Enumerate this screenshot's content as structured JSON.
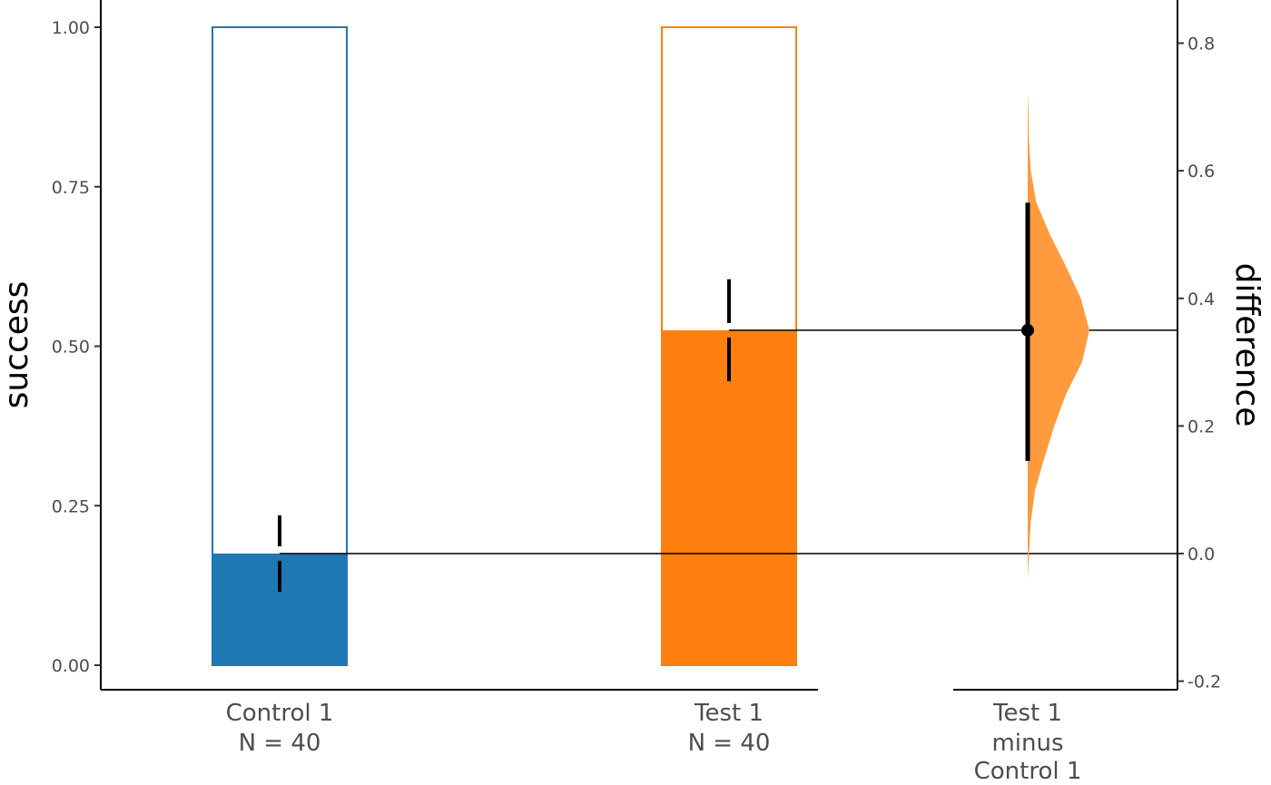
{
  "chart_data": {
    "type": "bar",
    "title": "",
    "colors": {
      "control": "#1f77b4",
      "test": "#ff7f0e",
      "test_fill_light": "#ff9a3d"
    },
    "left_axis": {
      "label": "success",
      "ylim": [
        0,
        1
      ],
      "ticks": [
        "0.00",
        "0.25",
        "0.50",
        "0.75",
        "1.00"
      ]
    },
    "right_axis": {
      "label": "difference",
      "ticks": [
        "-0.2",
        "0.0",
        "0.2",
        "0.4",
        "0.6",
        "0.8"
      ]
    },
    "categories": [
      {
        "line1": "Control 1",
        "line2": "N = 40",
        "value": 0.175,
        "ci": [
          0.115,
          0.235
        ]
      },
      {
        "line1": "Test 1",
        "line2": "N = 40",
        "value": 0.525,
        "ci": [
          0.445,
          0.605
        ]
      }
    ],
    "effect": {
      "label_lines": [
        "Test 1",
        "minus",
        "Control 1"
      ],
      "mean": 0.35,
      "ci": [
        0.145,
        0.55
      ],
      "distribution": {
        "y": [
          -0.04,
          0.0,
          0.05,
          0.1,
          0.15,
          0.2,
          0.25,
          0.3,
          0.35,
          0.4,
          0.45,
          0.5,
          0.55,
          0.6,
          0.65,
          0.7,
          0.72
        ],
        "density": [
          0.0,
          0.02,
          0.05,
          0.12,
          0.27,
          0.43,
          0.62,
          0.88,
          1.0,
          0.86,
          0.62,
          0.36,
          0.14,
          0.05,
          0.02,
          0.01,
          0.0
        ]
      }
    }
  }
}
